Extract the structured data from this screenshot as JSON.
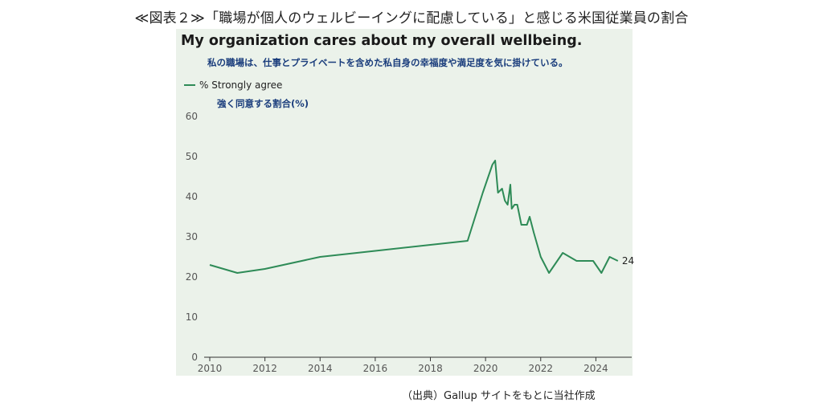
{
  "figure_caption": "≪図表２≫「職場が個人のウェルビーイングに配慮している」と感じる米国従業員の割合",
  "source_note": "（出典）Gallup サイトをもとに当社作成",
  "colors": {
    "panel_bg": "#ebf2ea",
    "line": "#2e8b57",
    "subtitle": "#1a3d7c"
  },
  "chart_data": {
    "type": "line",
    "title": "My organization cares about my overall wellbeing.",
    "subtitle": "私の職場は、仕事とプライベートを含めた私自身の幸福度や満足度を気に掛けている。",
    "legend_jp": "強く同意する割合(%)",
    "legend_placement": "top-left",
    "grid": false,
    "xlim": [
      2010,
      2025.3
    ],
    "ylim": [
      0,
      60
    ],
    "x_ticks": [
      2010,
      2012,
      2014,
      2016,
      2018,
      2020,
      2022,
      2024
    ],
    "y_ticks": [
      0,
      10,
      20,
      30,
      40,
      50,
      60
    ],
    "end_label": "24",
    "series": [
      {
        "name": "% Strongly agree",
        "x": [
          2010.0,
          2011.0,
          2012.0,
          2014.0,
          2016.0,
          2018.0,
          2019.35,
          2019.9,
          2020.25,
          2020.35,
          2020.45,
          2020.6,
          2020.7,
          2020.8,
          2020.9,
          2020.95,
          2021.05,
          2021.15,
          2021.3,
          2021.5,
          2021.6,
          2021.75,
          2022.0,
          2022.3,
          2022.8,
          2023.3,
          2023.9,
          2024.2,
          2024.5,
          2024.8
        ],
        "values": [
          23,
          21,
          22,
          25,
          26.5,
          28,
          29,
          41,
          48,
          49,
          41,
          42,
          39,
          38,
          43,
          37,
          38,
          38,
          33,
          33,
          35,
          31,
          25,
          21,
          26,
          24,
          24,
          21,
          25,
          24
        ]
      }
    ]
  }
}
